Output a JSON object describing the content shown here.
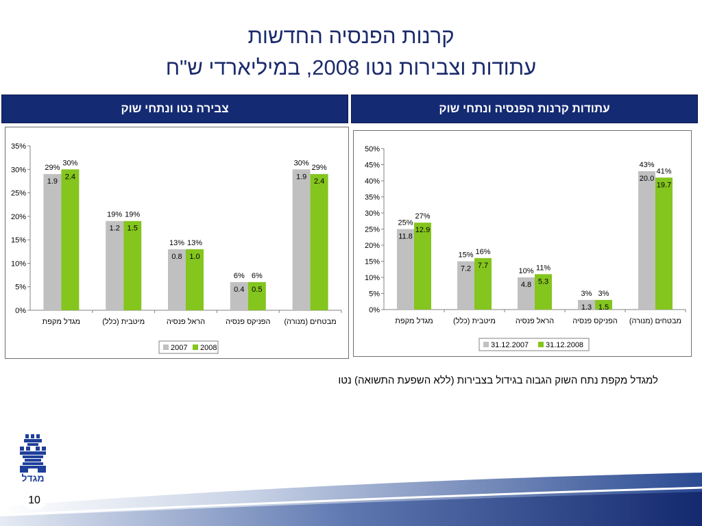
{
  "title_line1": "קרנות הפנסיה החדשות",
  "title_line2": "עתודות וצבירות נטו 2008, במיליארדי ש\"ח",
  "panel_left_header": "צבירה נטו ונתחי שוק",
  "panel_right_header": "עתודות קרנות הפנסיה ונתחי שוק",
  "note": "למגדל מקפת נתח השוק הגבוה בגידול בצבירות (ללא השפעת התשואה) נטו",
  "page_number": "10",
  "logo_text": "מגדל",
  "colors": {
    "series_a": "#c0c0c0",
    "series_b": "#84c51e",
    "header_bg": "#142a73",
    "title": "#1b2a6b"
  },
  "chart_data": [
    {
      "type": "bar",
      "title": "צבירה נטו ונתחי שוק",
      "categories": [
        "מגדל מקפת",
        "מיטבית (כלל)",
        "הראל פנסיה",
        "הפניקס פנסיה",
        "מבטחים (מנורה)"
      ],
      "ylim": [
        0,
        35
      ],
      "yticks": [
        "0%",
        "5%",
        "10%",
        "15%",
        "20%",
        "25%",
        "30%",
        "35%"
      ],
      "legend_position": "bottom",
      "grid": false,
      "series": [
        {
          "name": "2007",
          "color": "#c0c0c0",
          "values": [
            29,
            19,
            13,
            6,
            30
          ],
          "pct_labels": [
            "29%",
            "19%",
            "13%",
            "6%",
            "30%"
          ],
          "value_labels": [
            "1.9",
            "1.2",
            "0.8",
            "0.4",
            "1.9"
          ]
        },
        {
          "name": "2008",
          "color": "#84c51e",
          "values": [
            30,
            19,
            13,
            6,
            29
          ],
          "pct_labels": [
            "30%",
            "19%",
            "13%",
            "6%",
            "29%"
          ],
          "value_labels": [
            "2.4",
            "1.5",
            "1.0",
            "0.5",
            "2.4"
          ]
        }
      ]
    },
    {
      "type": "bar",
      "title": "עתודות קרנות הפנסיה ונתחי שוק",
      "categories": [
        "מגדל מקפת",
        "מיטבית (כלל)",
        "הראל פנסיה",
        "הפניקס פנסיה",
        "מבטחים (מנורה)"
      ],
      "ylim": [
        0,
        50
      ],
      "yticks": [
        "0%",
        "5%",
        "10%",
        "15%",
        "20%",
        "25%",
        "30%",
        "35%",
        "40%",
        "45%",
        "50%"
      ],
      "legend_position": "bottom",
      "grid": false,
      "series": [
        {
          "name": "31.12.2007",
          "color": "#c0c0c0",
          "values": [
            25,
            15,
            10,
            3,
            43
          ],
          "pct_labels": [
            "25%",
            "15%",
            "10%",
            "3%",
            "43%"
          ],
          "value_labels": [
            "11.8",
            "7.2",
            "4.8",
            "1.3",
            "20.0"
          ]
        },
        {
          "name": "31.12.2008",
          "color": "#84c51e",
          "values": [
            27,
            16,
            11,
            3,
            41
          ],
          "pct_labels": [
            "27%",
            "16%",
            "11%",
            "3%",
            "41%"
          ],
          "value_labels": [
            "12.9",
            "7.7",
            "5.3",
            "1.5",
            "19.7"
          ]
        }
      ]
    }
  ]
}
